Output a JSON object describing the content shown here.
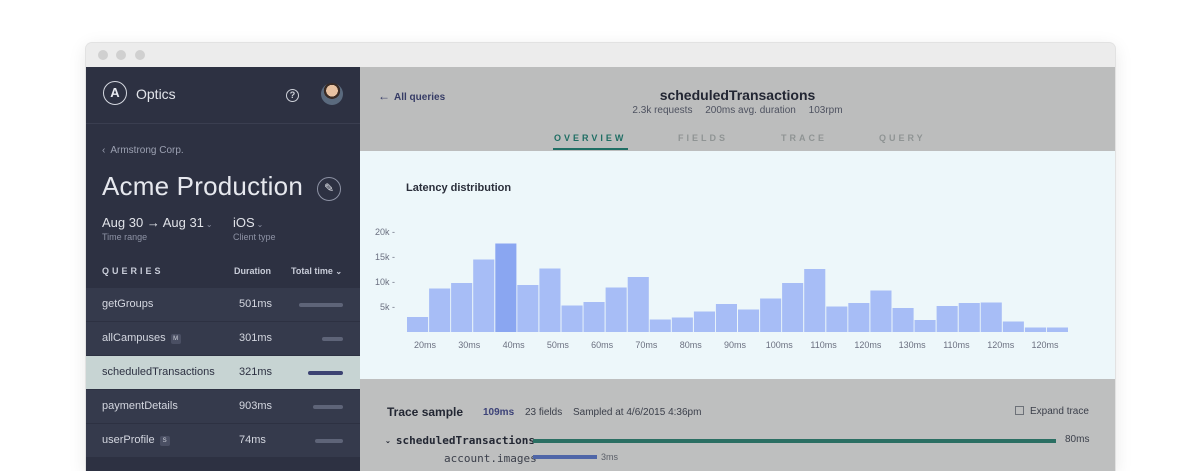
{
  "sidebar": {
    "app_name": "Optics",
    "logo_letter": "A",
    "help_glyph": "?",
    "org": "Armstrong Corp.",
    "project": "Acme Production",
    "time_range": "Aug 30 → Aug 31",
    "time_range_label": "Time range",
    "client_type": "iOS",
    "client_type_label": "Client type",
    "queries_header": "QUERIES",
    "duration_header": "Duration",
    "total_time_header": "Total time",
    "queries": [
      {
        "name": "getGroups",
        "duration": "501ms",
        "badge": "",
        "total_fraction": 0.95
      },
      {
        "name": "allCampuses",
        "duration": "301ms",
        "badge": "M",
        "total_fraction": 0.45
      },
      {
        "name": "scheduledTransactions",
        "duration": "321ms",
        "badge": "",
        "total_fraction": 0.75,
        "selected": true
      },
      {
        "name": "paymentDetails",
        "duration": "903ms",
        "badge": "",
        "total_fraction": 0.65
      },
      {
        "name": "userProfile",
        "duration": "74ms",
        "badge": "S",
        "total_fraction": 0.6
      }
    ]
  },
  "header": {
    "back_label": "All queries",
    "query_name": "scheduledTransactions",
    "requests": "2.3k requests",
    "avg_duration": "200ms avg. duration",
    "rpm": "103rpm",
    "tabs": [
      "OVERVIEW",
      "FIELDS",
      "TRACE",
      "QUERY"
    ],
    "active_tab": "OVERVIEW"
  },
  "chart_data": {
    "type": "bar",
    "title": "Latency distribution",
    "xlabel": "",
    "ylabel": "",
    "ylim": [
      0,
      25000
    ],
    "yticks": [
      5000,
      10000,
      15000,
      20000
    ],
    "ytick_labels": [
      "5k",
      "10k",
      "15k",
      "20k"
    ],
    "xtick_labels": [
      "20ms",
      "30ms",
      "40ms",
      "50ms",
      "60ms",
      "70ms",
      "80ms",
      "90ms",
      "100ms",
      "110ms",
      "120ms",
      "130ms",
      "110ms",
      "120ms",
      "120ms"
    ],
    "values": [
      3000,
      8700,
      9800,
      14500,
      17700,
      9400,
      12700,
      5300,
      6000,
      8900,
      11000,
      2500,
      2900,
      4100,
      5600,
      4500,
      6700,
      9800,
      12600,
      5100,
      5800,
      8300,
      4800,
      2400,
      5200,
      5800,
      5900,
      2100,
      900,
      900
    ],
    "bar_color": "#a7bdf6",
    "highlight_color": "#8aa6f1",
    "highlight_index": 4
  },
  "trace": {
    "title": "Trace sample",
    "duration": "109ms",
    "fields": "23 fields",
    "sampled": "Sampled at 4/6/2015 4:36pm",
    "expand_label": "Expand trace",
    "root_name": "scheduledTransactions",
    "root_ms": "80ms",
    "child_name": "account.images",
    "child_ms": "3ms"
  }
}
